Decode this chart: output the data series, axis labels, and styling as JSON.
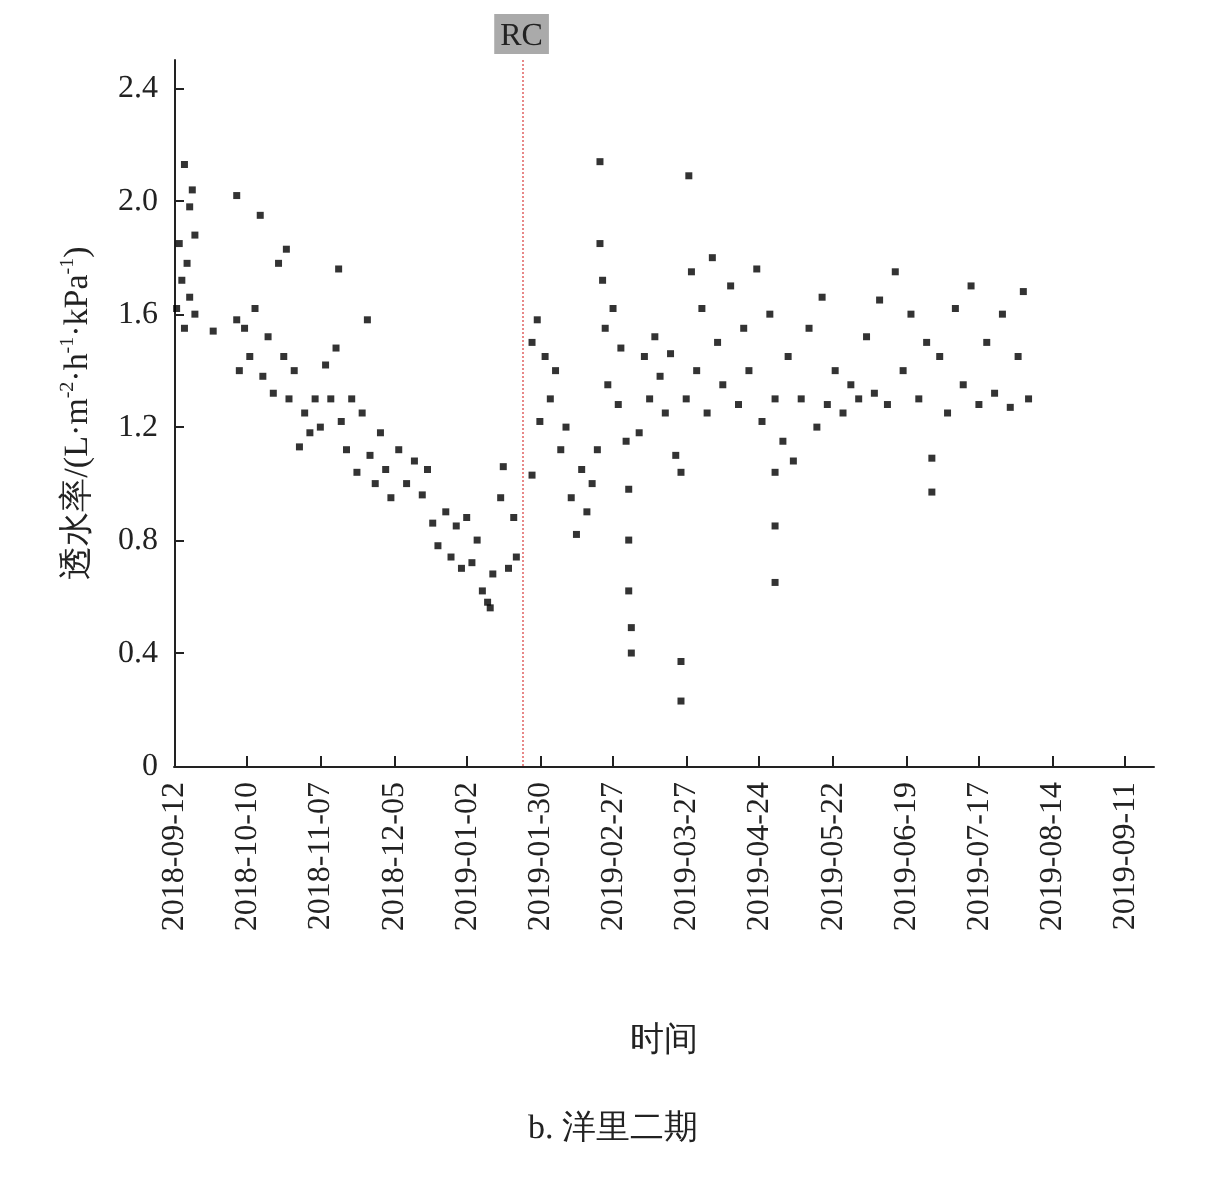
{
  "chart_data": {
    "type": "scatter",
    "title": "b. 洋里二期",
    "xlabel": "时间",
    "ylabel": "透水率/(L·m$^{-2}$·h$^{-1}$·kPa$^{-1}$)",
    "marker": "square",
    "grid": false,
    "xlim": [
      "2018-09-12",
      "2019-09-22"
    ],
    "xticks": [
      "2018-09-12",
      "2018-10-10",
      "2018-11-07",
      "2018-12-05",
      "2019-01-02",
      "2019-01-30",
      "2019-02-27",
      "2019-03-27",
      "2019-04-24",
      "2019-05-22",
      "2019-06-19",
      "2019-07-17",
      "2019-08-14",
      "2019-09-11"
    ],
    "ylim": [
      0,
      2.5
    ],
    "yticks": [
      0,
      0.4,
      0.8,
      1.2,
      1.6,
      {
        "value": 2.0,
        "label": "2.0"
      },
      2.4
    ],
    "ref_lines": [
      {
        "axis": "x",
        "value": "2019-01-23",
        "label": "RC",
        "color": "#e88888",
        "line_style": "dotted"
      }
    ],
    "series": [
      {
        "color": "#000000",
        "x": [
          "2018-09-13",
          "2018-09-14",
          "2018-09-15",
          "2018-09-16",
          "2018-09-16",
          "2018-09-17",
          "2018-09-18",
          "2018-09-18",
          "2018-09-19",
          "2018-09-20",
          "2018-09-20",
          "2018-09-27",
          "2018-10-06",
          "2018-10-06",
          "2018-10-07",
          "2018-10-09",
          "2018-10-11",
          "2018-10-13",
          "2018-10-15",
          "2018-10-16",
          "2018-10-18",
          "2018-10-20",
          "2018-10-22",
          "2018-10-24",
          "2018-10-25",
          "2018-10-26",
          "2018-10-28",
          "2018-10-30",
          "2018-11-01",
          "2018-11-03",
          "2018-11-05",
          "2018-11-07",
          "2018-11-09",
          "2018-11-11",
          "2018-11-13",
          "2018-11-14",
          "2018-11-15",
          "2018-11-17",
          "2018-11-19",
          "2018-11-21",
          "2018-11-23",
          "2018-11-25",
          "2018-11-26",
          "2018-11-28",
          "2018-11-30",
          "2018-12-02",
          "2018-12-04",
          "2018-12-07",
          "2018-12-10",
          "2018-12-13",
          "2018-12-16",
          "2018-12-18",
          "2018-12-20",
          "2018-12-22",
          "2018-12-25",
          "2018-12-27",
          "2018-12-29",
          "2018-12-31",
          "2019-01-02",
          "2019-01-04",
          "2019-01-06",
          "2019-01-08",
          "2019-01-10",
          "2019-01-11",
          "2019-01-12",
          "2019-01-15",
          "2019-01-16",
          "2019-01-18",
          "2019-01-20",
          "2019-01-21",
          "2019-01-27",
          "2019-01-27",
          "2019-01-29",
          "2019-01-30",
          "2019-02-01",
          "2019-02-03",
          "2019-02-05",
          "2019-02-07",
          "2019-02-09",
          "2019-02-11",
          "2019-02-13",
          "2019-02-15",
          "2019-02-17",
          "2019-02-19",
          "2019-02-21",
          "2019-02-22",
          "2019-02-22",
          "2019-02-23",
          "2019-02-24",
          "2019-02-25",
          "2019-02-27",
          "2019-03-01",
          "2019-03-02",
          "2019-03-04",
          "2019-03-05",
          "2019-03-05",
          "2019-03-05",
          "2019-03-06",
          "2019-03-06",
          "2019-03-09",
          "2019-03-11",
          "2019-03-13",
          "2019-03-15",
          "2019-03-17",
          "2019-03-19",
          "2019-03-21",
          "2019-03-23",
          "2019-03-25",
          "2019-03-25",
          "2019-03-25",
          "2019-03-27",
          "2019-03-28",
          "2019-03-29",
          "2019-03-31",
          "2019-04-02",
          "2019-04-04",
          "2019-04-06",
          "2019-04-08",
          "2019-04-10",
          "2019-04-13",
          "2019-04-16",
          "2019-04-18",
          "2019-04-20",
          "2019-04-23",
          "2019-04-25",
          "2019-04-28",
          "2019-04-30",
          "2019-04-30",
          "2019-04-30",
          "2019-04-30",
          "2019-05-03",
          "2019-05-05",
          "2019-05-07",
          "2019-05-10",
          "2019-05-13",
          "2019-05-16",
          "2019-05-18",
          "2019-05-20",
          "2019-05-23",
          "2019-05-26",
          "2019-05-29",
          "2019-06-01",
          "2019-06-04",
          "2019-06-07",
          "2019-06-09",
          "2019-06-12",
          "2019-06-15",
          "2019-06-18",
          "2019-06-21",
          "2019-06-24",
          "2019-06-27",
          "2019-06-29",
          "2019-06-29",
          "2019-07-02",
          "2019-07-05",
          "2019-07-08",
          "2019-07-11",
          "2019-07-14",
          "2019-07-17",
          "2019-07-20",
          "2019-07-23",
          "2019-07-26",
          "2019-07-29",
          "2019-08-01",
          "2019-08-03",
          "2019-08-05"
        ],
        "values": [
          1.62,
          1.85,
          1.72,
          2.13,
          1.55,
          1.78,
          1.98,
          1.66,
          2.04,
          1.88,
          1.6,
          1.54,
          2.02,
          1.58,
          1.4,
          1.55,
          1.45,
          1.62,
          1.95,
          1.38,
          1.52,
          1.32,
          1.78,
          1.45,
          1.83,
          1.3,
          1.4,
          1.13,
          1.25,
          1.18,
          1.3,
          1.2,
          1.42,
          1.3,
          1.48,
          1.76,
          1.22,
          1.12,
          1.3,
          1.04,
          1.25,
          1.58,
          1.1,
          1.0,
          1.18,
          1.05,
          0.95,
          1.12,
          1.0,
          1.08,
          0.96,
          1.05,
          0.86,
          0.78,
          0.9,
          0.74,
          0.85,
          0.7,
          0.88,
          0.72,
          0.8,
          0.62,
          0.58,
          0.56,
          0.68,
          0.95,
          1.06,
          0.7,
          0.88,
          0.74,
          1.5,
          1.03,
          1.58,
          1.22,
          1.45,
          1.3,
          1.4,
          1.12,
          1.2,
          0.95,
          0.82,
          1.05,
          0.9,
          1.0,
          1.12,
          2.14,
          1.85,
          1.72,
          1.55,
          1.35,
          1.62,
          1.28,
          1.48,
          1.15,
          0.98,
          0.8,
          0.62,
          0.49,
          0.4,
          1.18,
          1.45,
          1.3,
          1.52,
          1.38,
          1.25,
          1.46,
          1.1,
          1.04,
          0.37,
          0.23,
          1.3,
          2.09,
          1.75,
          1.4,
          1.62,
          1.25,
          1.8,
          1.5,
          1.35,
          1.7,
          1.28,
          1.55,
          1.4,
          1.76,
          1.22,
          1.6,
          1.3,
          1.04,
          0.85,
          0.65,
          1.15,
          1.45,
          1.08,
          1.3,
          1.55,
          1.2,
          1.66,
          1.28,
          1.4,
          1.25,
          1.35,
          1.3,
          1.52,
          1.32,
          1.65,
          1.28,
          1.75,
          1.4,
          1.6,
          1.3,
          1.5,
          1.09,
          0.97,
          1.45,
          1.25,
          1.62,
          1.35,
          1.7,
          1.28,
          1.5,
          1.32,
          1.6,
          1.27,
          1.45,
          1.68,
          1.3
        ]
      }
    ]
  }
}
